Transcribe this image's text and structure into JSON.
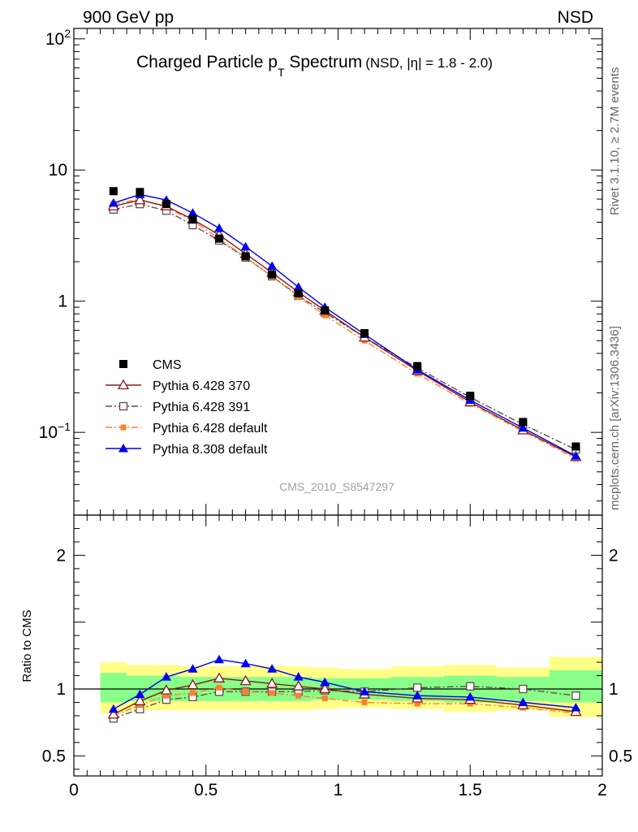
{
  "header": {
    "left": "900 GeV pp",
    "right": "NSD"
  },
  "side_labels": {
    "rivet": "Rivet 3.1.10, ≥ 2.7M events",
    "mcplots": "mcplots.cern.ch [arXiv:1306.3436]"
  },
  "colors": {
    "cms": "#000000",
    "pythia6_370": "#8b1a1a",
    "pythia6_391": "#6b4a4a",
    "pythia6_default": "#ff7f2a",
    "pythia8_default": "#0000ee",
    "band_outer": "#ffff88",
    "band_inner": "#88ff88"
  },
  "chart_data": [
    {
      "type": "line",
      "panel": "main",
      "title_main": "Charged Particle p",
      "title_sub": "T",
      "title_rest": " Spectrum",
      "title_qual": "(NSD, |η| = 1.8 - 2.0)",
      "watermark": "CMS_2010_S8547297",
      "yscale": "log",
      "xlim": [
        0,
        2
      ],
      "ylim": [
        0.0234,
        120
      ],
      "y_tick_labels": [
        {
          "v": 100,
          "base": "10",
          "exp": "2"
        },
        {
          "v": 10,
          "base": "10",
          "exp": ""
        },
        {
          "v": 1,
          "base": "1",
          "exp": ""
        },
        {
          "v": 0.1,
          "base": "10",
          "exp": "−1"
        }
      ],
      "legend_position": "lower-left",
      "series": [
        {
          "name": "CMS",
          "key": "cms",
          "marker": "square-filled",
          "line": "none",
          "x": [
            0.15,
            0.25,
            0.35,
            0.45,
            0.55,
            0.65,
            0.75,
            0.85,
            0.95,
            1.1,
            1.3,
            1.5,
            1.7,
            1.9
          ],
          "y": [
            6.9,
            6.8,
            5.5,
            4.2,
            3.0,
            2.2,
            1.6,
            1.15,
            0.85,
            0.57,
            0.32,
            0.19,
            0.12,
            0.078
          ]
        },
        {
          "name": "Pythia 6.428 370",
          "key": "pythia6_370",
          "marker": "triangle-open",
          "line": "solid",
          "x": [
            0.15,
            0.25,
            0.35,
            0.45,
            0.55,
            0.65,
            0.75,
            0.85,
            0.95,
            1.1,
            1.3,
            1.5,
            1.7,
            1.9
          ],
          "y": [
            5.3,
            5.9,
            5.3,
            4.2,
            3.2,
            2.3,
            1.65,
            1.17,
            0.85,
            0.53,
            0.295,
            0.17,
            0.104,
            0.065
          ]
        },
        {
          "name": "Pythia 6.428 391",
          "key": "pythia6_391",
          "marker": "square-open",
          "line": "dashdot",
          "x": [
            0.15,
            0.25,
            0.35,
            0.45,
            0.55,
            0.65,
            0.75,
            0.85,
            0.95,
            1.1,
            1.3,
            1.5,
            1.7,
            1.9
          ],
          "y": [
            5.0,
            5.5,
            4.9,
            3.8,
            2.9,
            2.15,
            1.55,
            1.1,
            0.82,
            0.53,
            0.31,
            0.185,
            0.115,
            0.074
          ]
        },
        {
          "name": "Pythia 6.428 default",
          "key": "pythia6_default",
          "marker": "square-small-filled",
          "line": "dashdot",
          "x": [
            0.15,
            0.25,
            0.35,
            0.45,
            0.55,
            0.65,
            0.75,
            0.85,
            0.95,
            1.1,
            1.3,
            1.5,
            1.7,
            1.9
          ],
          "y": [
            5.5,
            6.0,
            5.2,
            4.1,
            3.0,
            2.15,
            1.55,
            1.08,
            0.78,
            0.5,
            0.28,
            0.165,
            0.102,
            0.063
          ]
        },
        {
          "name": "Pythia 8.308 default",
          "key": "pythia8_default",
          "marker": "triangle-filled",
          "line": "solid",
          "x": [
            0.15,
            0.25,
            0.35,
            0.45,
            0.55,
            0.65,
            0.75,
            0.85,
            0.95,
            1.1,
            1.3,
            1.5,
            1.7,
            1.9
          ],
          "y": [
            5.6,
            6.5,
            5.9,
            4.7,
            3.6,
            2.6,
            1.85,
            1.28,
            0.9,
            0.56,
            0.3,
            0.176,
            0.108,
            0.066
          ]
        }
      ]
    },
    {
      "type": "line",
      "panel": "ratio",
      "ylabel": "Ratio to CMS",
      "xlim": [
        0,
        2
      ],
      "ylim": [
        0.35,
        2.3
      ],
      "y_tick_labels": [
        {
          "v": 2,
          "label": "2"
        },
        {
          "v": 1,
          "label": "1"
        },
        {
          "v": 0.5,
          "label": "0.5"
        }
      ],
      "x_tick_labels": [
        {
          "v": 0,
          "label": "0"
        },
        {
          "v": 0.5,
          "label": "0.5"
        },
        {
          "v": 1,
          "label": "1"
        },
        {
          "v": 1.5,
          "label": "1.5"
        },
        {
          "v": 2,
          "label": "2"
        }
      ],
      "bands": [
        {
          "x0": 0.1,
          "x1": 0.2,
          "outer": [
            0.82,
            1.2
          ],
          "inner": [
            0.9,
            1.12
          ]
        },
        {
          "x0": 0.2,
          "x1": 0.3,
          "outer": [
            0.84,
            1.18
          ],
          "inner": [
            0.91,
            1.1
          ]
        },
        {
          "x0": 0.3,
          "x1": 0.4,
          "outer": [
            0.84,
            1.18
          ],
          "inner": [
            0.91,
            1.1
          ]
        },
        {
          "x0": 0.4,
          "x1": 0.5,
          "outer": [
            0.84,
            1.17
          ],
          "inner": [
            0.91,
            1.09
          ]
        },
        {
          "x0": 0.5,
          "x1": 0.6,
          "outer": [
            0.84,
            1.17
          ],
          "inner": [
            0.91,
            1.09
          ]
        },
        {
          "x0": 0.6,
          "x1": 0.7,
          "outer": [
            0.84,
            1.17
          ],
          "inner": [
            0.91,
            1.09
          ]
        },
        {
          "x0": 0.7,
          "x1": 0.8,
          "outer": [
            0.84,
            1.17
          ],
          "inner": [
            0.91,
            1.09
          ]
        },
        {
          "x0": 0.8,
          "x1": 0.9,
          "outer": [
            0.84,
            1.17
          ],
          "inner": [
            0.91,
            1.09
          ]
        },
        {
          "x0": 0.9,
          "x1": 1.0,
          "outer": [
            0.85,
            1.16
          ],
          "inner": [
            0.92,
            1.08
          ]
        },
        {
          "x0": 1.0,
          "x1": 1.2,
          "outer": [
            0.86,
            1.15
          ],
          "inner": [
            0.92,
            1.08
          ]
        },
        {
          "x0": 1.2,
          "x1": 1.4,
          "outer": [
            0.85,
            1.17
          ],
          "inner": [
            0.91,
            1.09
          ]
        },
        {
          "x0": 1.4,
          "x1": 1.6,
          "outer": [
            0.83,
            1.18
          ],
          "inner": [
            0.9,
            1.1
          ]
        },
        {
          "x0": 1.6,
          "x1": 1.8,
          "outer": [
            0.84,
            1.16
          ],
          "inner": [
            0.91,
            1.09
          ]
        },
        {
          "x0": 1.8,
          "x1": 2.0,
          "outer": [
            0.79,
            1.24
          ],
          "inner": [
            0.9,
            1.14
          ]
        }
      ],
      "series": [
        {
          "key": "pythia6_370",
          "marker": "triangle-open",
          "line": "solid",
          "x": [
            0.15,
            0.25,
            0.35,
            0.45,
            0.55,
            0.65,
            0.75,
            0.85,
            0.95,
            1.1,
            1.3,
            1.5,
            1.7,
            1.9
          ],
          "y": [
            0.81,
            0.91,
            0.99,
            1.03,
            1.08,
            1.06,
            1.04,
            1.02,
            1.0,
            0.96,
            0.93,
            0.92,
            0.88,
            0.83
          ]
        },
        {
          "key": "pythia6_391",
          "marker": "square-open",
          "line": "dashdot",
          "x": [
            0.15,
            0.25,
            0.35,
            0.45,
            0.55,
            0.65,
            0.75,
            0.85,
            0.95,
            1.1,
            1.3,
            1.5,
            1.7,
            1.9
          ],
          "y": [
            0.78,
            0.85,
            0.92,
            0.94,
            0.98,
            0.98,
            0.98,
            0.98,
            0.99,
            0.98,
            1.01,
            1.02,
            1.0,
            0.95
          ]
        },
        {
          "key": "pythia6_default",
          "marker": "square-small-filled",
          "line": "dashdot",
          "x": [
            0.15,
            0.25,
            0.35,
            0.45,
            0.55,
            0.65,
            0.75,
            0.85,
            0.95,
            1.1,
            1.3,
            1.5,
            1.7,
            1.9
          ],
          "y": [
            0.8,
            0.88,
            0.95,
            0.97,
            1.01,
            0.98,
            0.97,
            0.95,
            0.93,
            0.9,
            0.89,
            0.89,
            0.86,
            0.82
          ]
        },
        {
          "key": "pythia8_default",
          "marker": "triangle-filled",
          "line": "solid",
          "x": [
            0.15,
            0.25,
            0.35,
            0.45,
            0.55,
            0.65,
            0.75,
            0.85,
            0.95,
            1.1,
            1.3,
            1.5,
            1.7,
            1.9
          ],
          "y": [
            0.85,
            0.96,
            1.09,
            1.15,
            1.22,
            1.19,
            1.15,
            1.09,
            1.05,
            0.98,
            0.95,
            0.94,
            0.9,
            0.86
          ]
        }
      ]
    }
  ]
}
